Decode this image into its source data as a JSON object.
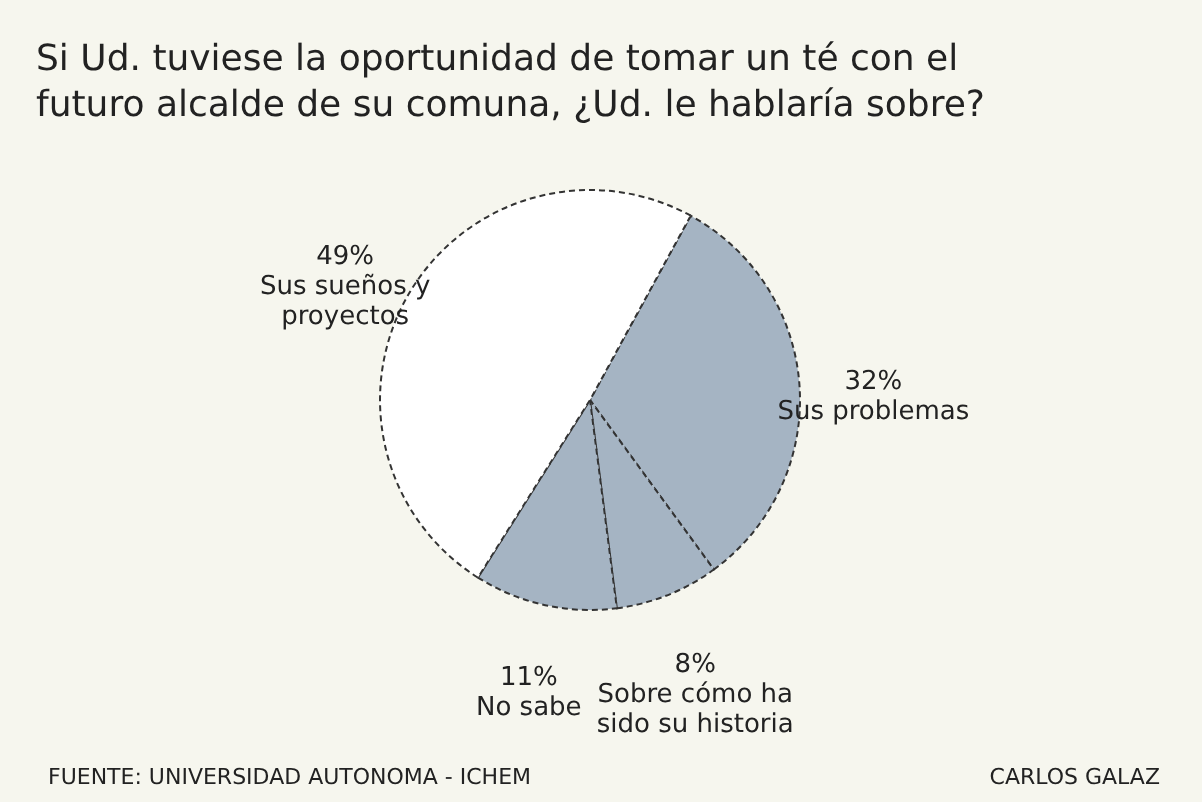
{
  "chart_data": {
    "type": "pie",
    "title": "Si Ud. tuviese la oportunidad de tomar un té con el futuro alcalde de su comuna, ¿Ud. le hablaría sobre?",
    "categories": [
      "Sus problemas",
      "Sobre cómo ha sido su historia",
      "No sabe",
      "Sus sueños y proyectos"
    ],
    "values": [
      32,
      8,
      11,
      49
    ],
    "colors": [
      "#a5b4c3",
      "#a5b4c3",
      "#a5b4c3",
      "#ffffff"
    ],
    "value_labels": [
      "32%",
      "8%",
      "11%",
      "49%"
    ],
    "legend": false,
    "annotations": [
      "FUENTE: UNIVERSIDAD AUTONOMA - ICHEM",
      "CARLOS GALAZ"
    ]
  }
}
